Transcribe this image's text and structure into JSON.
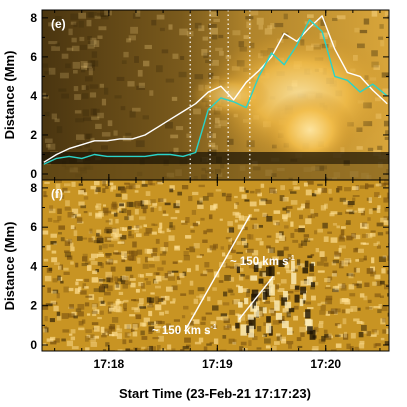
{
  "chart_data": [
    {
      "panel": "(e)",
      "type": "line",
      "ylabel": "Distance (Mm)",
      "xlabel": "Start Time (23-Feb-21 17:17:23)",
      "y_ticks": [
        "0",
        "2",
        "4",
        "6",
        "8"
      ],
      "ylim": [
        0,
        8.3
      ],
      "xlim": [
        "17:17:23",
        "17:20:35"
      ],
      "x_ticks": [
        "17:18",
        "17:19",
        "17:20"
      ],
      "vertical_lines_dotted": [
        "17:18:45",
        "17:18:56",
        "17:19:06",
        "17:19:18"
      ],
      "background": "time-distance intensity map (yellow-orange)",
      "series": [
        {
          "color": "#ffffff",
          "x": [
            "17:17:24",
            "17:17:31",
            "17:17:38",
            "17:17:45",
            "17:17:52",
            "17:17:59",
            "17:18:06",
            "17:18:13",
            "17:18:20",
            "17:18:27",
            "17:18:34",
            "17:18:41",
            "17:18:48",
            "17:18:55",
            "17:19:02",
            "17:19:09",
            "17:19:16",
            "17:19:23",
            "17:19:30",
            "17:19:37",
            "17:19:44",
            "17:19:51",
            "17:19:58",
            "17:20:05",
            "17:20:12",
            "17:20:19",
            "17:20:26",
            "17:20:34"
          ],
          "y": [
            0.6,
            1.0,
            1.3,
            1.5,
            1.7,
            1.7,
            1.8,
            1.8,
            2.0,
            2.4,
            2.8,
            3.2,
            3.6,
            4.2,
            4.5,
            3.8,
            4.7,
            5.3,
            6.0,
            7.2,
            6.8,
            7.5,
            8.1,
            6.4,
            5.2,
            5.0,
            4.3,
            3.6
          ]
        },
        {
          "color": "#2ad3c8",
          "x": [
            "17:17:24",
            "17:17:31",
            "17:17:38",
            "17:17:45",
            "17:17:52",
            "17:17:59",
            "17:18:06",
            "17:18:13",
            "17:18:20",
            "17:18:27",
            "17:18:34",
            "17:18:41",
            "17:18:48",
            "17:18:55",
            "17:19:02",
            "17:19:09",
            "17:19:16",
            "17:19:23",
            "17:19:30",
            "17:19:37",
            "17:19:44",
            "17:19:51",
            "17:19:58",
            "17:20:05",
            "17:20:12",
            "17:20:19",
            "17:20:26",
            "17:20:34"
          ],
          "y": [
            0.5,
            0.8,
            0.9,
            0.8,
            1.0,
            0.9,
            0.9,
            0.9,
            0.9,
            1.0,
            1.0,
            0.9,
            1.1,
            3.3,
            3.9,
            3.7,
            3.4,
            5.0,
            6.2,
            5.6,
            6.6,
            7.9,
            7.3,
            5.0,
            4.8,
            4.2,
            4.6,
            4.0
          ]
        }
      ]
    },
    {
      "panel": "(f)",
      "type": "heatmap",
      "ylabel": "Distance (Mm)",
      "xlabel": "Start Time (23-Feb-21 17:17:23)",
      "y_ticks": [
        "0",
        "2",
        "4",
        "6",
        "8"
      ],
      "ylim": [
        0,
        8.3
      ],
      "x_ticks": [
        "17:18",
        "17:19",
        "17:20"
      ],
      "background": "running-difference time-distance map (yellow-orange, dark/bright streaks)",
      "annotations": [
        {
          "text": "~ 150 km s⁻¹",
          "line_from": [
            "17:18:42",
            0.7
          ],
          "line_to": [
            "17:19:18",
            6.6
          ]
        },
        {
          "text": "~ 150 km s⁻¹",
          "line_from": [
            "17:19:12",
            1.3
          ],
          "line_to": [
            "17:19:31",
            3.5
          ]
        }
      ]
    }
  ],
  "labels": {
    "panel_e_tag": "(e)",
    "panel_f_tag": "(f)",
    "ylabel": "Distance (Mm)",
    "xlabel": "Start Time (23-Feb-21 17:17:23)",
    "anno_upper": "~ 150 km s",
    "anno_lower": "~ 150 km s",
    "anno_exp": "-1"
  },
  "colors": {
    "white_series": "#ffffff",
    "cyan_series": "#2ad3c8",
    "map_base": "#c89423",
    "map_bright": "#ffe7a0",
    "map_dark": "#3a2a08"
  }
}
